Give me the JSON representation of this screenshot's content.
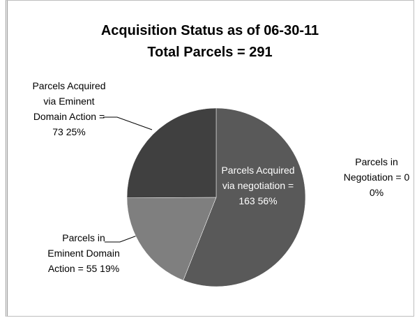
{
  "chart_data": {
    "type": "pie",
    "title": "Acquisition Status as of 06-30-11",
    "subtitle": "Total Parcels = 291",
    "categories": [
      "Parcels Acquired via negotiation",
      "Parcels in Negotiation",
      "Parcels in Eminent Domain Action",
      "Parcels Acquired via Eminent Domain Action"
    ],
    "values": [
      163,
      0,
      55,
      73
    ],
    "value_labels": [
      "= 163",
      "=  0",
      "=  55",
      "= 73"
    ],
    "percents": [
      56,
      0,
      19,
      25
    ],
    "percent_labels": [
      "56%",
      "0%",
      "19%",
      "25%"
    ],
    "colors": [
      "#595959",
      "#6b6b6b",
      "#7f7f7f",
      "#404040"
    ]
  }
}
